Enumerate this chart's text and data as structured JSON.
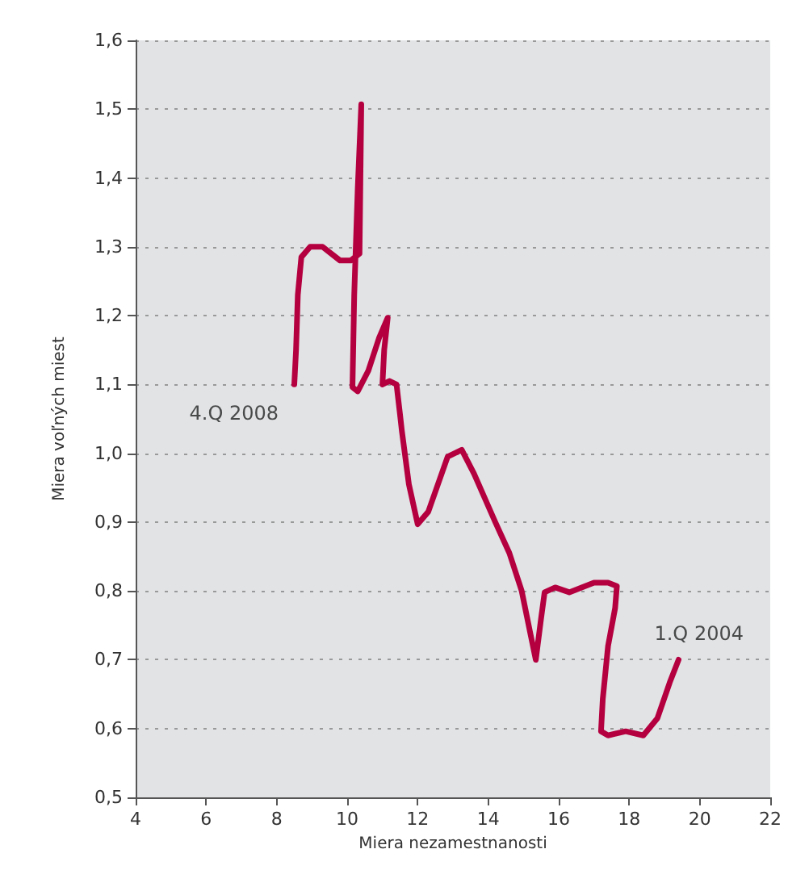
{
  "chart_data": {
    "type": "line",
    "xlabel": "Miera nezamestnanosti",
    "ylabel": "Miera voľných miest",
    "series": [
      {
        "color": "#b5003f",
        "x": [
          19.4,
          19.15,
          18.8,
          18.4,
          17.9,
          17.4,
          17.2,
          17.25,
          17.4,
          17.6,
          17.65,
          17.4,
          17.0,
          16.3,
          15.9,
          15.6,
          15.5,
          15.35,
          15.2,
          14.95,
          14.6,
          14.2,
          13.6,
          13.25,
          12.85,
          12.3,
          12.0,
          11.75,
          11.55,
          11.5,
          11.4,
          11.2,
          11.0,
          11.05,
          11.15,
          10.9,
          10.6,
          10.3,
          10.15,
          10.2,
          10.25,
          10.3,
          10.4,
          10.35,
          10.1,
          9.8,
          9.3,
          8.95,
          8.7,
          8.6,
          8.55,
          8.5
        ],
        "values": [
          0.7,
          0.667,
          0.615,
          0.59,
          0.596,
          0.59,
          0.596,
          0.643,
          0.72,
          0.775,
          0.807,
          0.812,
          0.812,
          0.798,
          0.805,
          0.798,
          0.76,
          0.7,
          0.737,
          0.8,
          0.855,
          0.9,
          0.97,
          1.005,
          0.995,
          0.915,
          0.897,
          0.955,
          1.033,
          1.056,
          1.1,
          1.105,
          1.1,
          1.15,
          1.197,
          1.167,
          1.12,
          1.09,
          1.096,
          1.23,
          1.308,
          1.385,
          1.507,
          1.29,
          1.28,
          1.28,
          1.3,
          1.3,
          1.285,
          1.23,
          1.15,
          1.1
        ]
      }
    ],
    "annotations": [
      {
        "text": "4.Q 2008",
        "x": 8.5,
        "y": 1.1
      },
      {
        "text": "1.Q 2004",
        "x": 19.4,
        "y": 0.7
      }
    ],
    "xlim": [
      4,
      22
    ],
    "xticks": [
      4,
      6,
      8,
      10,
      12,
      14,
      16,
      18,
      20,
      22
    ],
    "ylim": [
      0.5,
      1.6
    ],
    "yticks": [
      {
        "value": 0.5,
        "label": "0,5"
      },
      {
        "value": 0.6,
        "label": "0,6"
      },
      {
        "value": 0.7,
        "label": "0,7"
      },
      {
        "value": 0.8,
        "label": "0,8"
      },
      {
        "value": 0.9,
        "label": "0,9"
      },
      {
        "value": 1.0,
        "label": "1,0"
      },
      {
        "value": 1.1,
        "label": "1,1"
      },
      {
        "value": 1.2,
        "label": "1,2"
      },
      {
        "value": 1.3,
        "label": "1,3"
      },
      {
        "value": 1.4,
        "label": "1,4"
      },
      {
        "value": 1.5,
        "label": "1,5"
      },
      {
        "value": 1.6,
        "label": "1,6"
      }
    ],
    "grid": "y",
    "marker": "none",
    "line_style": "solid"
  }
}
